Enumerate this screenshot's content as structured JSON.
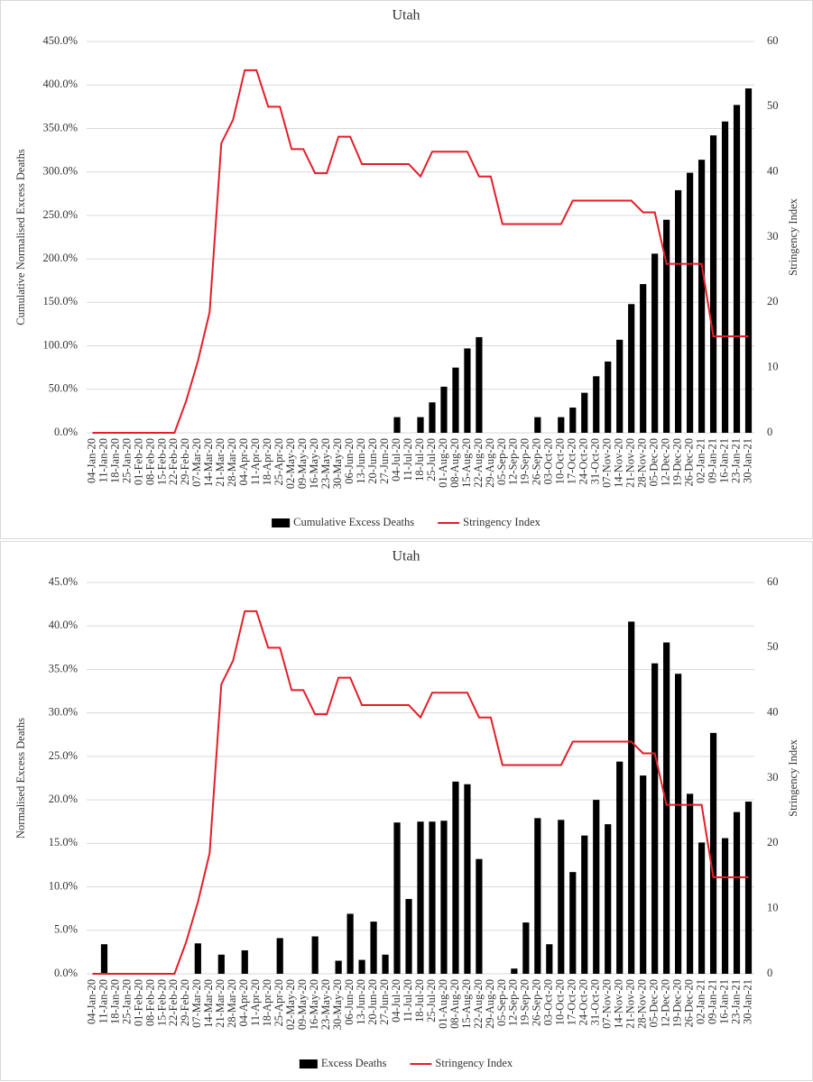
{
  "chart_data": [
    {
      "type": "bar",
      "title": "Utah",
      "y_label": "Cumulative Normalised Excess Deaths",
      "y2_label": "Stringency Index",
      "categories": [
        "04-Jan-20",
        "11-Jan-20",
        "18-Jan-20",
        "25-Jan-20",
        "01-Feb-20",
        "08-Feb-20",
        "15-Feb-20",
        "22-Feb-20",
        "29-Feb-20",
        "07-Mar-20",
        "14-Mar-20",
        "21-Mar-20",
        "28-Mar-20",
        "04-Apr-20",
        "11-Apr-20",
        "18-Apr-20",
        "25-Apr-20",
        "02-May-20",
        "09-May-20",
        "16-May-20",
        "23-May-20",
        "30-May-20",
        "06-Jun-20",
        "13-Jun-20",
        "20-Jun-20",
        "27-Jun-20",
        "04-Jul-20",
        "11-Jul-20",
        "18-Jul-20",
        "25-Jul-20",
        "01-Aug-20",
        "08-Aug-20",
        "15-Aug-20",
        "22-Aug-20",
        "29-Aug-20",
        "05-Sep-20",
        "12-Sep-20",
        "19-Sep-20",
        "26-Sep-20",
        "03-Oct-20",
        "10-Oct-20",
        "17-Oct-20",
        "24-Oct-20",
        "31-Oct-20",
        "07-Nov-20",
        "14-Nov-20",
        "21-Nov-20",
        "28-Nov-20",
        "05-Dec-20",
        "12-Dec-20",
        "19-Dec-20",
        "26-Dec-20",
        "02-Jan-21",
        "09-Jan-21",
        "16-Jan-21",
        "23-Jan-21",
        "30-Jan-21"
      ],
      "series": [
        {
          "name": "Cumulative Excess Deaths",
          "color": "#000000",
          "type": "bar",
          "values": [
            0,
            0,
            0,
            0,
            0,
            0,
            0,
            0,
            0,
            0,
            0,
            0,
            0,
            0,
            0,
            0,
            0,
            0,
            0,
            0,
            0,
            0,
            0,
            0,
            0,
            0,
            18,
            0,
            18,
            35,
            53,
            75,
            97,
            110,
            0,
            0,
            0,
            0,
            18,
            0,
            18,
            29,
            46,
            65,
            82,
            107,
            148,
            171,
            206,
            245,
            279,
            299,
            314,
            342,
            358,
            377,
            396
          ]
        },
        {
          "name": "Stringency Index",
          "color": "#e31e2a",
          "type": "line",
          "axis": "y2",
          "values": [
            0,
            0,
            0,
            0,
            0,
            0,
            0,
            0,
            4.9,
            11,
            18.5,
            44.4,
            48,
            55.6,
            55.6,
            50,
            50,
            43.5,
            43.5,
            39.8,
            39.8,
            45.4,
            45.4,
            41.2,
            41.2,
            41.2,
            41.2,
            41.2,
            39.3,
            43.1,
            43.1,
            43.1,
            43.1,
            39.3,
            39.3,
            32,
            32,
            32,
            32,
            32,
            32,
            35.6,
            35.6,
            35.6,
            35.6,
            35.6,
            35.6,
            33.8,
            33.8,
            25.9,
            25.9,
            25.9,
            25.9,
            14.8,
            14.8,
            14.8,
            14.8
          ]
        }
      ],
      "ylim": [
        0,
        450
      ],
      "yticks": [
        {
          "value": 0,
          "label": "0.0%"
        },
        {
          "value": 50,
          "label": "50.0%"
        },
        {
          "value": 100,
          "label": "100.0%"
        },
        {
          "value": 150,
          "label": "150.0%"
        },
        {
          "value": 200,
          "label": "200.0%"
        },
        {
          "value": 250,
          "label": "250.0%"
        },
        {
          "value": 300,
          "label": "300.0%"
        },
        {
          "value": 350,
          "label": "350.0%"
        },
        {
          "value": 400,
          "label": "400.0%"
        },
        {
          "value": 450,
          "label": "450.0%"
        }
      ],
      "y2lim": [
        0,
        60
      ],
      "y2ticks": [
        0,
        10,
        20,
        30,
        40,
        50,
        60
      ],
      "grid": true,
      "legend": "bottom"
    },
    {
      "type": "bar",
      "title": "Utah",
      "y_label": "Normalised Excess Deaths",
      "y2_label": "Stringency Index",
      "categories": [
        "04-Jan-20",
        "11-Jan-20",
        "18-Jan-20",
        "25-Jan-20",
        "01-Feb-20",
        "08-Feb-20",
        "15-Feb-20",
        "22-Feb-20",
        "29-Feb-20",
        "07-Mar-20",
        "14-Mar-20",
        "21-Mar-20",
        "28-Mar-20",
        "04-Apr-20",
        "11-Apr-20",
        "18-Apr-20",
        "25-Apr-20",
        "02-May-20",
        "09-May-20",
        "16-May-20",
        "23-May-20",
        "30-May-20",
        "06-Jun-20",
        "13-Jun-20",
        "20-Jun-20",
        "27-Jun-20",
        "04-Jul-20",
        "11-Jul-20",
        "18-Jul-20",
        "25-Jul-20",
        "01-Aug-20",
        "08-Aug-20",
        "15-Aug-20",
        "22-Aug-20",
        "29-Aug-20",
        "05-Sep-20",
        "12-Sep-20",
        "19-Sep-20",
        "26-Sep-20",
        "03-Oct-20",
        "10-Oct-20",
        "17-Oct-20",
        "24-Oct-20",
        "31-Oct-20",
        "07-Nov-20",
        "14-Nov-20",
        "21-Nov-20",
        "28-Nov-20",
        "05-Dec-20",
        "12-Dec-20",
        "19-Dec-20",
        "26-Dec-20",
        "02-Jan-21",
        "09-Jan-21",
        "16-Jan-21",
        "23-Jan-21",
        "30-Jan-21"
      ],
      "series": [
        {
          "name": "Excess Deaths",
          "color": "#000000",
          "type": "bar",
          "values": [
            0,
            3.4,
            0,
            0,
            0,
            0,
            0,
            0,
            0,
            3.5,
            0,
            2.2,
            0,
            2.7,
            0,
            0,
            4.1,
            0,
            0,
            4.3,
            0,
            1.5,
            6.9,
            1.6,
            6.0,
            2.2,
            17.4,
            8.6,
            17.5,
            17.5,
            17.6,
            22.1,
            21.8,
            13.2,
            0,
            0,
            0.6,
            5.9,
            17.9,
            3.4,
            17.7,
            11.7,
            15.9,
            20.0,
            17.2,
            24.4,
            40.5,
            22.8,
            35.7,
            38.1,
            34.5,
            20.7,
            15.1,
            27.7,
            15.6,
            18.6,
            19.8
          ]
        },
        {
          "name": "Stringency Index",
          "color": "#e31e2a",
          "type": "line",
          "axis": "y2",
          "values": [
            0,
            0,
            0,
            0,
            0,
            0,
            0,
            0,
            4.9,
            11,
            18.5,
            44.4,
            48,
            55.6,
            55.6,
            50,
            50,
            43.5,
            43.5,
            39.8,
            39.8,
            45.4,
            45.4,
            41.2,
            41.2,
            41.2,
            41.2,
            41.2,
            39.3,
            43.1,
            43.1,
            43.1,
            43.1,
            39.3,
            39.3,
            32,
            32,
            32,
            32,
            32,
            32,
            35.6,
            35.6,
            35.6,
            35.6,
            35.6,
            35.6,
            33.8,
            33.8,
            25.9,
            25.9,
            25.9,
            25.9,
            14.8,
            14.8,
            14.8,
            14.8
          ]
        }
      ],
      "ylim": [
        0,
        45
      ],
      "yticks": [
        {
          "value": 0,
          "label": "0.0%"
        },
        {
          "value": 5,
          "label": "5.0%"
        },
        {
          "value": 10,
          "label": "10.0%"
        },
        {
          "value": 15,
          "label": "15.0%"
        },
        {
          "value": 20,
          "label": "20.0%"
        },
        {
          "value": 25,
          "label": "25.0%"
        },
        {
          "value": 30,
          "label": "30.0%"
        },
        {
          "value": 35,
          "label": "35.0%"
        },
        {
          "value": 40,
          "label": "40.0%"
        },
        {
          "value": 45,
          "label": "45.0%"
        }
      ],
      "y2lim": [
        0,
        60
      ],
      "y2ticks": [
        0,
        10,
        20,
        30,
        40,
        50,
        60
      ],
      "grid": true,
      "legend": "bottom"
    }
  ]
}
